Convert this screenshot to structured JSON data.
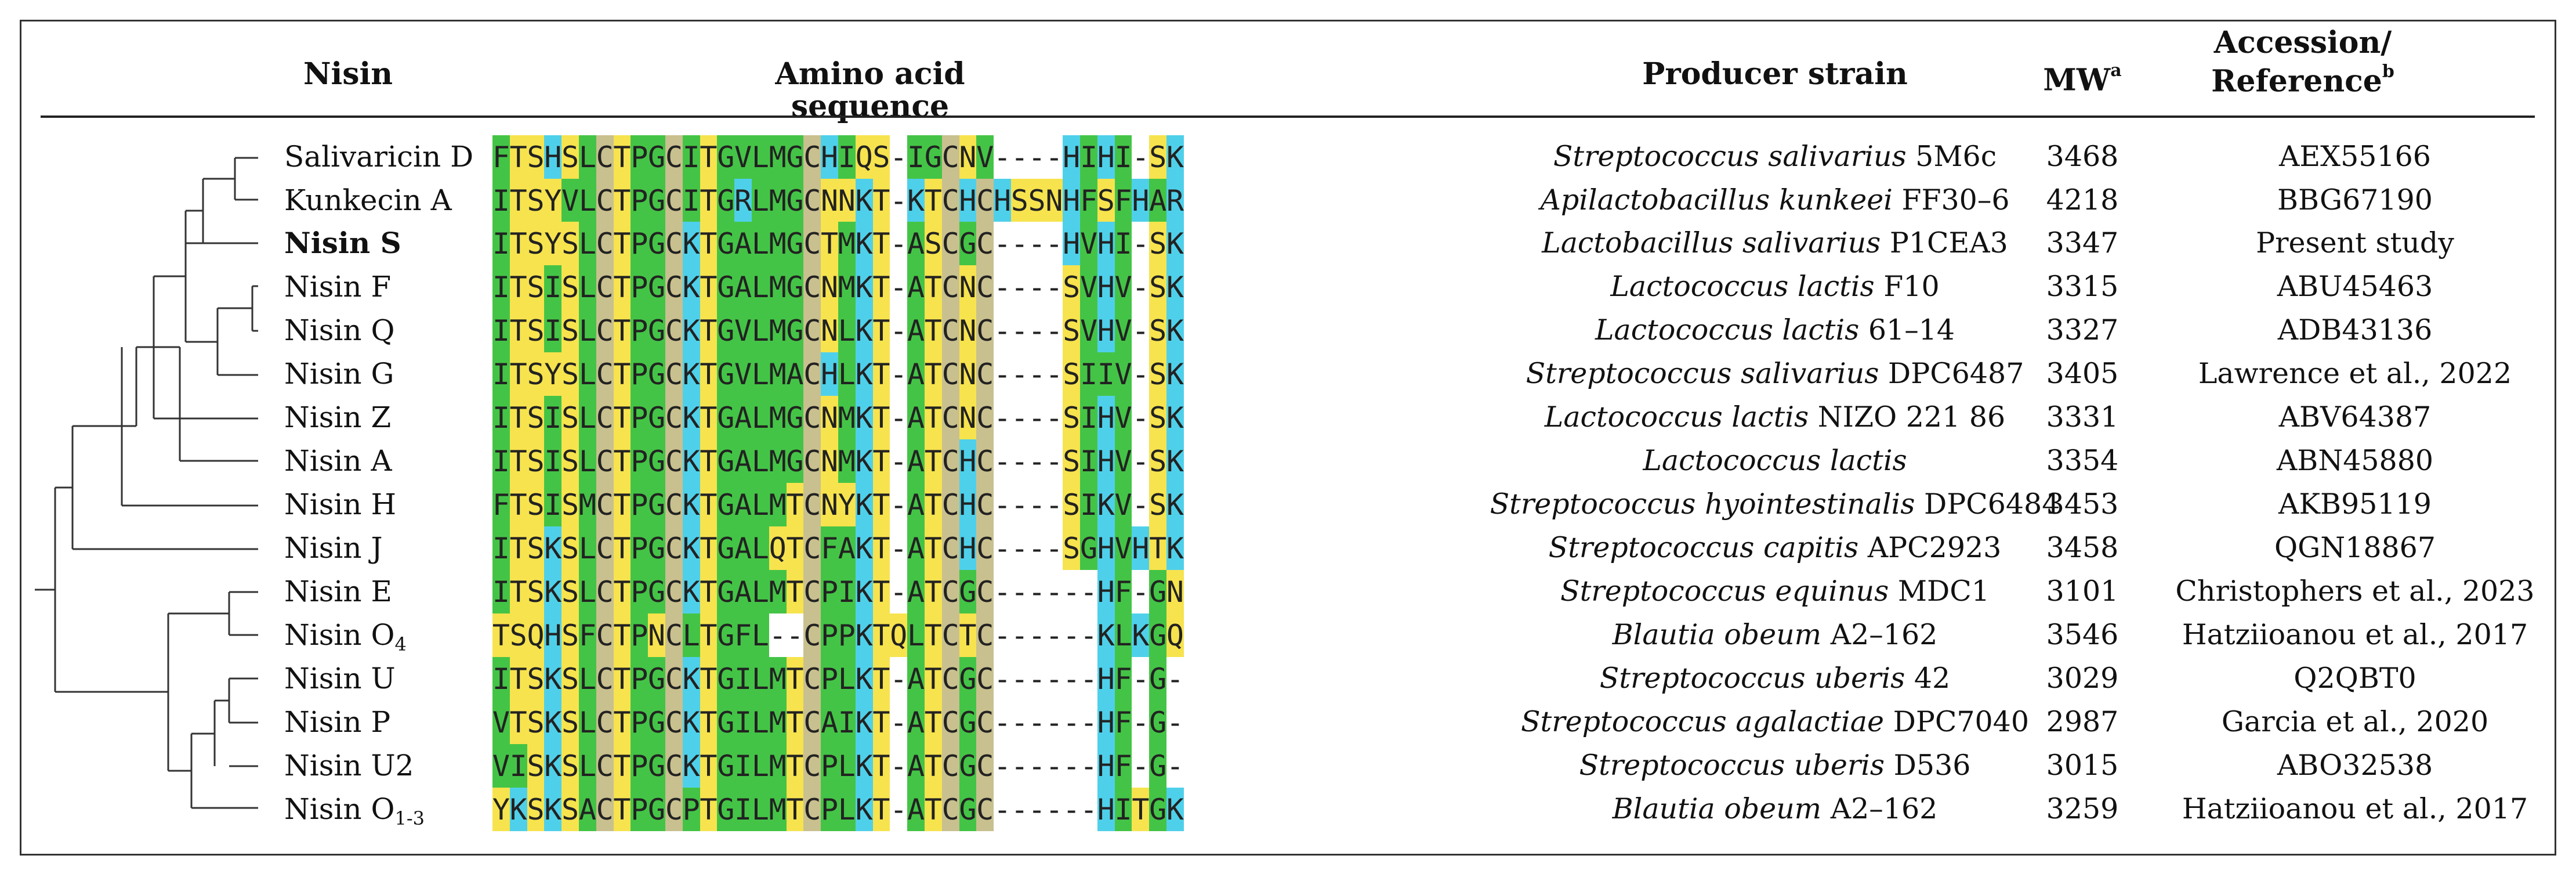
{
  "headers": {
    "nisin": "Nisin",
    "sequence": "Amino acid sequence",
    "strain": "Producer strain",
    "mw": "MW",
    "mw_sup": "a",
    "acc_line1": "Accession/",
    "acc_line2": "Reference",
    "acc_sup": "b"
  },
  "colors": {
    "A": "#44c446",
    "F": "#44c446",
    "G": "#44c446",
    "I": "#44c446",
    "L": "#44c446",
    "M": "#44c446",
    "P": "#44c446",
    "V": "#44c446",
    "W": "#44c446",
    "S": "#f7e34e",
    "T": "#f7e34e",
    "N": "#f7e34e",
    "Q": "#f7e34e",
    "Y": "#f7e34e",
    "C": "#c9c08f",
    "H": "#4fd0ea",
    "K": "#4fd0ea",
    "R": "#4fd0ea",
    "D": "#b34ee0",
    "E": "#b34ee0",
    "gap": "#ffffff"
  },
  "rows": [
    {
      "name": "Salivaricin D",
      "sub": "",
      "bold": false,
      "seq": "FTSHSLCTPGCITGVLMGCHIQS-IGCNV----HIHI-SK",
      "strain_italic": "Streptococcus salivarius",
      "strain_rest": " 5M6c",
      "mw": "3468",
      "ref": "AEX55166"
    },
    {
      "name": "Kunkecin A",
      "sub": "",
      "bold": false,
      "seq": "ITSYVLCTPGCITGRLMGCNNKT-KTCHCHSSNHFSFHAR",
      "strain_italic": "Apilactobacillus kunkeei",
      "strain_rest": " FF30–6",
      "mw": "4218",
      "ref": "BBG67190"
    },
    {
      "name": "Nisin S",
      "sub": "",
      "bold": true,
      "seq": "ITSYSLCTPGCKTGALMGCTMKT-ASCGC----HVHI-SK",
      "strain_italic": "Lactobacillus salivarius",
      "strain_rest": " P1CEA3",
      "mw": "3347",
      "ref": "Present study"
    },
    {
      "name": "Nisin F",
      "sub": "",
      "bold": false,
      "seq": "ITSISLCTPGCKTGALMGCNMKT-ATCNC----SVHV-SK",
      "strain_italic": "Lactococcus lactis",
      "strain_rest": " F10",
      "mw": "3315",
      "ref": "ABU45463"
    },
    {
      "name": "Nisin Q",
      "sub": "",
      "bold": false,
      "seq": "ITSISLCTPGCKTGVLMGCNLKT-ATCNC----SVHV-SK",
      "strain_italic": "Lactococcus lactis",
      "strain_rest": " 61–14",
      "mw": "3327",
      "ref": "ADB43136"
    },
    {
      "name": "Nisin G",
      "sub": "",
      "bold": false,
      "seq": "ITSYSLCTPGCKTGVLMACHLKT-ATCNC----SIIV-SK",
      "strain_italic": "Streptococcus salivarius",
      "strain_rest": " DPC6487",
      "mw": "3405",
      "ref": "Lawrence et al., 2022"
    },
    {
      "name": "Nisin Z",
      "sub": "",
      "bold": false,
      "seq": "ITSISLCTPGCKTGALMGCNMKT-ATCNC----SIHV-SK",
      "strain_italic": "Lactococcus lactis",
      "strain_rest": " NIZO 221 86",
      "mw": "3331",
      "ref": "ABV64387"
    },
    {
      "name": "Nisin A",
      "sub": "",
      "bold": false,
      "seq": "ITSISLCTPGCKTGALMGCNMKT-ATCHC----SIHV-SK",
      "strain_italic": "Lactococcus lactis",
      "strain_rest": "",
      "mw": "3354",
      "ref": "ABN45880"
    },
    {
      "name": "Nisin H",
      "sub": "",
      "bold": false,
      "seq": "FTSISMCTPGCKTGALMTCNYKT-ATCHC----SIKV-SK",
      "strain_italic": "Streptococcus hyointestinalis",
      "strain_rest": " DPC6484",
      "mw": "3453",
      "ref": "AKB95119"
    },
    {
      "name": "Nisin J",
      "sub": "",
      "bold": false,
      "seq": "ITSKSLCTPGCKTGALQTCFAKT-ATCHC----SGHVHTK",
      "strain_italic": "Streptococcus capitis",
      "strain_rest": " APC2923",
      "mw": "3458",
      "ref": "QGN18867"
    },
    {
      "name": "Nisin E",
      "sub": "",
      "bold": false,
      "seq": "ITSKSLCTPGCKTGALMTCPIKT-ATCGC------HF-GN",
      "strain_italic": "Streptococcus equinus",
      "strain_rest": " MDC1",
      "mw": "3101",
      "ref": "Christophers et al., 2023"
    },
    {
      "name": "Nisin O",
      "sub": "4",
      "bold": false,
      "seq": "TSQHSFCTPNCLTGFL--CPPKTQLTCTC------KLKGQ",
      "strain_italic": "Blautia obeum",
      "strain_rest": " A2–162",
      "mw": "3546",
      "ref": "Hatziioanou et al., 2017"
    },
    {
      "name": "Nisin U",
      "sub": "",
      "bold": false,
      "seq": "ITSKSLCTPGCKTGILMTCPLKT-ATCGC------HF-G-",
      "strain_italic": "Streptococcus uberis",
      "strain_rest": " 42",
      "mw": "3029",
      "ref": "Q2QBT0"
    },
    {
      "name": "Nisin P",
      "sub": "",
      "bold": false,
      "seq": "VTSKSLCTPGCKTGILMTCAIKT-ATCGC------HF-G-",
      "strain_italic": "Streptococcus agalactiae",
      "strain_rest": " DPC7040",
      "mw": "2987",
      "ref": "Garcia et al., 2020"
    },
    {
      "name": "Nisin U2",
      "sub": "",
      "bold": false,
      "seq": "VISKSLCTPGCKTGILMTCPLKT-ATCGC------HF-G-",
      "strain_italic": "Streptococcus uberis",
      "strain_rest": " D536",
      "mw": "3015",
      "ref": "ABO32538"
    },
    {
      "name": "Nisin O",
      "sub": "1-3",
      "bold": false,
      "seq": "YKSKSACTPGCPTGILMTCPLKT-ATCGC------HITGK",
      "strain_italic": "Blautia obeum",
      "strain_rest": " A2–162",
      "mw": "3259",
      "ref": "Hatziioanou et al., 2017"
    }
  ]
}
